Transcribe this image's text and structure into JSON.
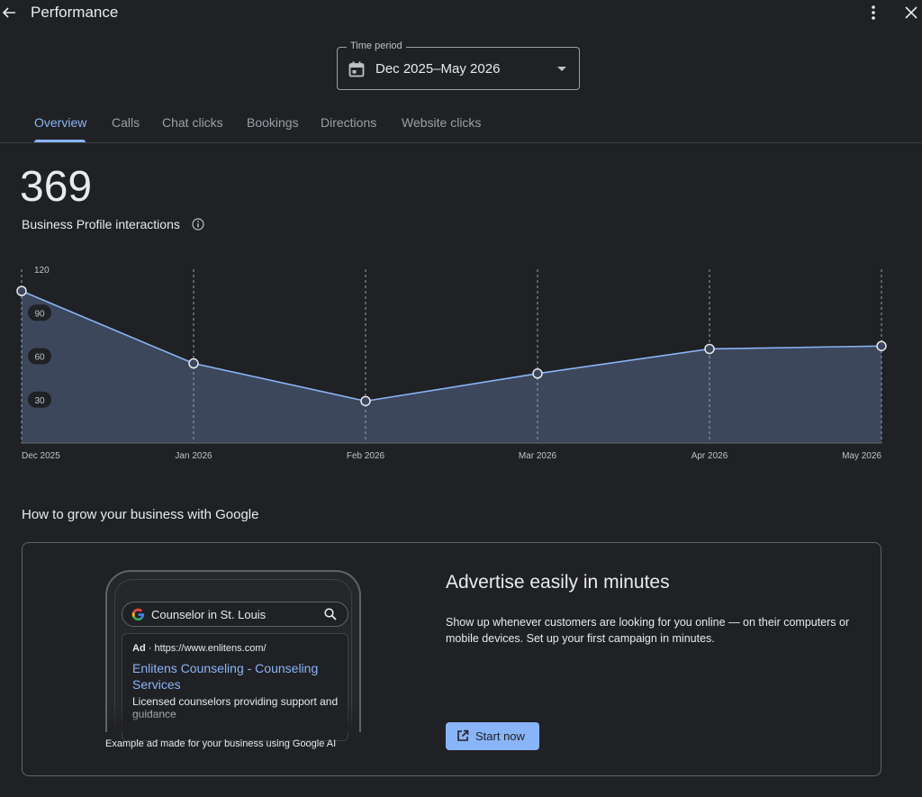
{
  "header": {
    "title": "Performance"
  },
  "time_period": {
    "label": "Time period",
    "value": "Dec 2025–May 2026"
  },
  "tabs": [
    {
      "label": "Overview",
      "active": true
    },
    {
      "label": "Calls"
    },
    {
      "label": "Chat clicks"
    },
    {
      "label": "Bookings"
    },
    {
      "label": "Directions"
    },
    {
      "label": "Website clicks"
    }
  ],
  "summary": {
    "total": "369",
    "label": "Business Profile interactions"
  },
  "chart_data": {
    "type": "area",
    "x": [
      "Dec 2025",
      "Jan 2026",
      "Feb 2026",
      "Mar 2026",
      "Apr 2026",
      "May 2026"
    ],
    "values": [
      105,
      55,
      29,
      48,
      65,
      67
    ],
    "yticks": [
      120,
      90,
      60,
      30
    ],
    "ylim": [
      0,
      120
    ],
    "grid": "vertical-dashed",
    "line_color": "#8ab4f8",
    "fill_color": "#3c475c"
  },
  "grow": {
    "title": "How to grow your business with Google",
    "mock": {
      "query": "Counselor in St. Louis",
      "ad_tag": "Ad",
      "ad_url": "https://www.enlitens.com/",
      "ad_title": "Enlitens Counseling - Counseling Services",
      "ad_desc": "Licensed counselors providing support and guidance"
    },
    "caption": "Example ad made for your business using Google AI",
    "heading": "Advertise easily in minutes",
    "body": "Show up whenever customers are looking for you online — on their computers or mobile devices. Set up your first campaign in minutes.",
    "button": "Start now"
  },
  "colors": {
    "background": "#202124",
    "accent": "#8ab4f8"
  }
}
